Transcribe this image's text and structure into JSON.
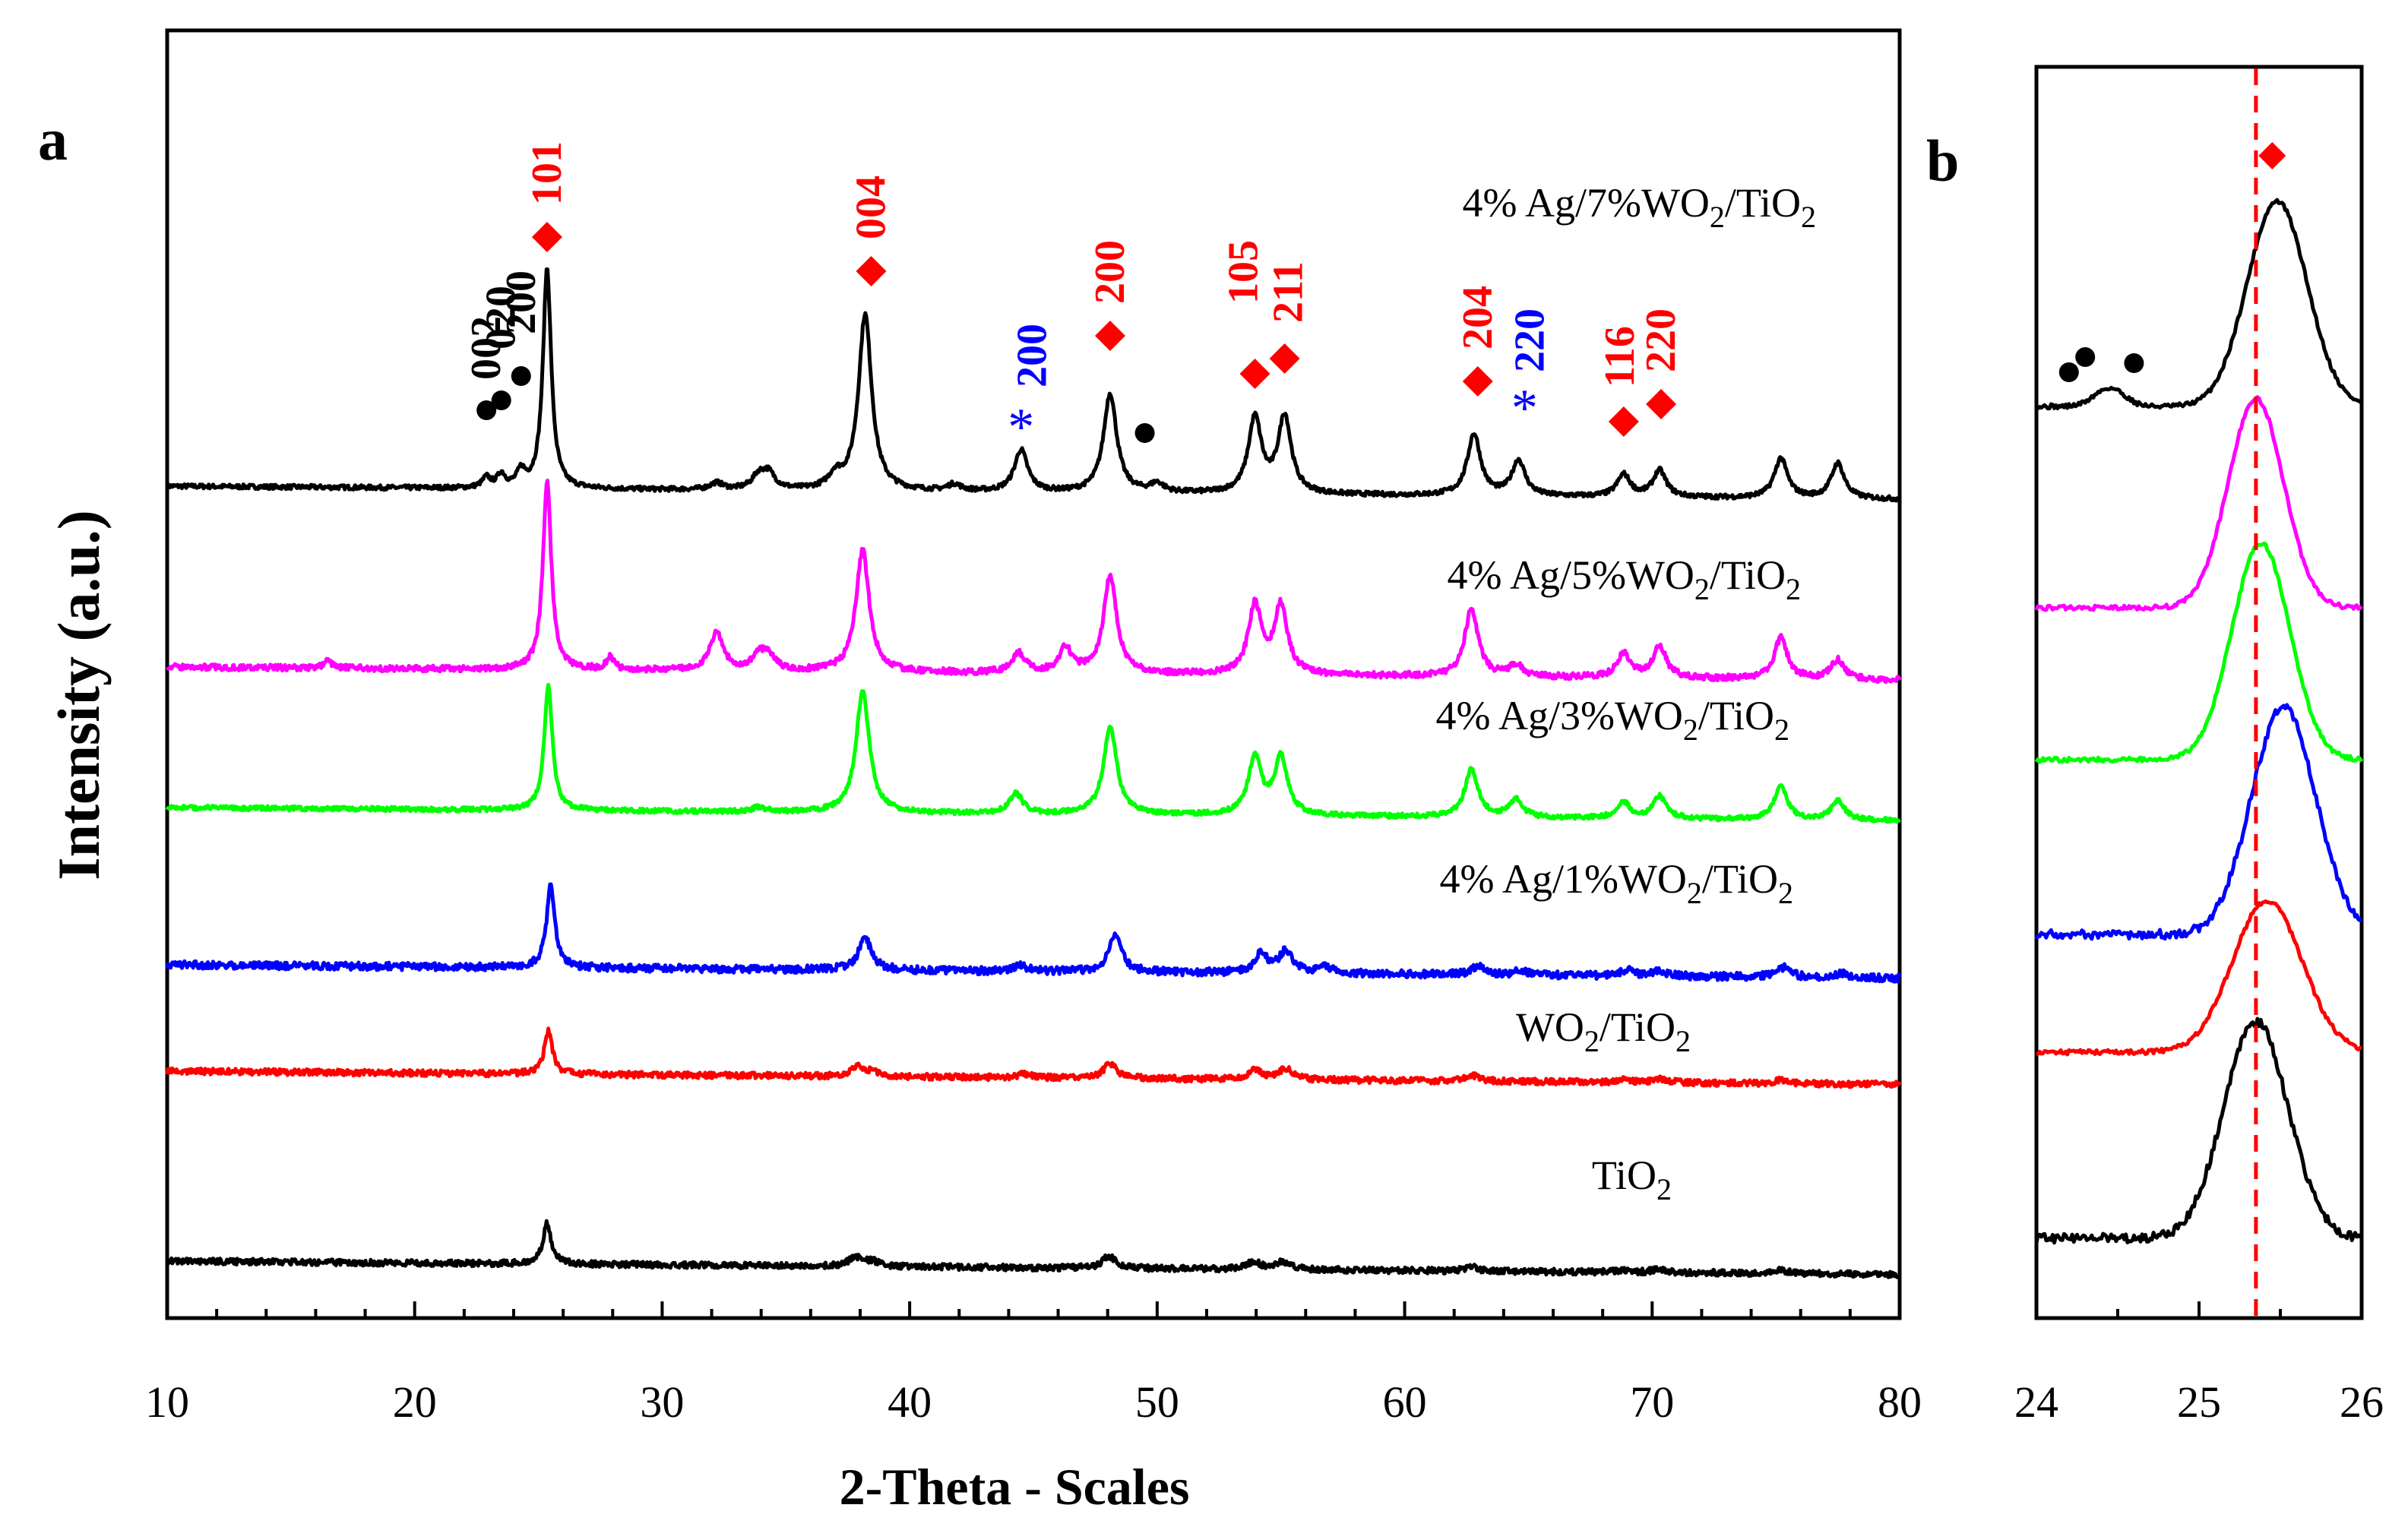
{
  "chart_data": [
    {
      "panel_label": "a",
      "type": "line",
      "title": "",
      "xlabel": "2-Theta - Scales",
      "ylabel": "Intensity (a.u.)",
      "xlim": [
        10,
        80
      ],
      "xticks": [
        "10",
        "20",
        "30",
        "40",
        "50",
        "60",
        "70",
        "80"
      ],
      "yticks": [],
      "grid": false,
      "legend": "inline labels next to each curve",
      "series": [
        {
          "name": "4% Ag/7%WO2/TiO2",
          "label_main": "4% Ag/7%WO",
          "label_mid": "/TiO",
          "sub": "2",
          "color": "#000000",
          "baseline": 0.0,
          "peaks": [
            [
              22.9,
              0.045
            ],
            [
              23.5,
              0.06
            ],
            [
              24.3,
              0.07
            ],
            [
              25.35,
              1.0
            ],
            [
              32.2,
              0.03
            ],
            [
              33.9,
              0.06
            ],
            [
              34.3,
              0.07
            ],
            [
              37.0,
              0.06
            ],
            [
              38.2,
              0.8
            ],
            [
              41.8,
              0.03
            ],
            [
              44.5,
              0.19
            ],
            [
              48.1,
              0.45
            ],
            [
              50.0,
              0.04
            ],
            [
              53.95,
              0.34
            ],
            [
              55.15,
              0.35
            ],
            [
              62.8,
              0.28
            ],
            [
              64.6,
              0.16
            ],
            [
              68.85,
              0.1
            ],
            [
              70.3,
              0.12
            ],
            [
              75.2,
              0.18
            ],
            [
              77.5,
              0.16
            ]
          ]
        },
        {
          "name": "4% Ag/5%WO2/TiO2",
          "label_main": "4% Ag/5%WO",
          "label_mid": "/TiO",
          "sub": "2",
          "color": "#ff00ff",
          "baseline": 0.0,
          "peaks": [
            [
              16.5,
              0.03
            ],
            [
              25.35,
              0.78
            ],
            [
              27.9,
              0.05
            ],
            [
              32.2,
              0.16
            ],
            [
              33.9,
              0.06
            ],
            [
              34.3,
              0.06
            ],
            [
              38.1,
              0.5
            ],
            [
              44.4,
              0.08
            ],
            [
              46.3,
              0.1
            ],
            [
              48.1,
              0.4
            ],
            [
              53.95,
              0.28
            ],
            [
              55.0,
              0.28
            ],
            [
              62.7,
              0.28
            ],
            [
              64.5,
              0.05
            ],
            [
              68.85,
              0.1
            ],
            [
              70.3,
              0.13
            ],
            [
              75.2,
              0.17
            ],
            [
              77.5,
              0.08
            ]
          ]
        },
        {
          "name": "4% Ag/3%WO2/TiO2",
          "label_main": "4% Ag/3%WO",
          "label_mid": "/TiO",
          "sub": "2",
          "color": "#00ff00",
          "baseline": 0.0,
          "peaks": [
            [
              25.4,
              0.56
            ],
            [
              33.9,
              0.02
            ],
            [
              38.1,
              0.55
            ],
            [
              44.3,
              0.09
            ],
            [
              48.1,
              0.4
            ],
            [
              53.95,
              0.26
            ],
            [
              55.0,
              0.26
            ],
            [
              62.7,
              0.22
            ],
            [
              64.5,
              0.08
            ],
            [
              68.85,
              0.07
            ],
            [
              70.3,
              0.1
            ],
            [
              75.2,
              0.15
            ],
            [
              77.5,
              0.09
            ]
          ]
        },
        {
          "name": "4% Ag/1%WO2/TiO2",
          "label_main": "4% Ag/1%WO",
          "label_mid": "/TiO",
          "sub": "2",
          "color": "#0000ff",
          "baseline": 0.0,
          "peaks": [
            [
              25.5,
              0.61
            ],
            [
              38.2,
              0.23
            ],
            [
              44.5,
              0.04
            ],
            [
              48.3,
              0.26
            ],
            [
              54.2,
              0.14
            ],
            [
              55.2,
              0.16
            ],
            [
              56.8,
              0.05
            ],
            [
              63.0,
              0.07
            ],
            [
              64.7,
              0.03
            ],
            [
              69.0,
              0.04
            ],
            [
              70.3,
              0.04
            ],
            [
              75.3,
              0.07
            ],
            [
              77.6,
              0.03
            ]
          ]
        },
        {
          "name": "WO2/TiO2",
          "label_main": "WO",
          "label_mid": "/TiO",
          "sub": "2",
          "color": "#ff0000",
          "baseline": 0.0,
          "peaks": [
            [
              25.4,
              0.47
            ],
            [
              37.9,
              0.1
            ],
            [
              38.5,
              0.05
            ],
            [
              44.6,
              0.04
            ],
            [
              48.1,
              0.16
            ],
            [
              53.95,
              0.1
            ],
            [
              55.2,
              0.12
            ],
            [
              62.7,
              0.07
            ],
            [
              68.8,
              0.03
            ],
            [
              70.4,
              0.04
            ],
            [
              75.2,
              0.04
            ]
          ]
        },
        {
          "name": "TiO2",
          "label_main": "TiO",
          "label_mid": "",
          "sub": "2",
          "color": "#000000",
          "baseline": 0.0,
          "peaks": [
            [
              25.35,
              0.67
            ],
            [
              37.8,
              0.15
            ],
            [
              38.5,
              0.08
            ],
            [
              48.05,
              0.2
            ],
            [
              53.9,
              0.13
            ],
            [
              55.1,
              0.13
            ],
            [
              62.7,
              0.07
            ],
            [
              68.8,
              0.03
            ],
            [
              70.3,
              0.06
            ],
            [
              75.2,
              0.05
            ]
          ]
        }
      ],
      "annotations": [
        {
          "text": "101",
          "color": "#ff0000",
          "marker": "diamond",
          "x": 25.35
        },
        {
          "text": "004",
          "color": "#ff0000",
          "marker": "diamond",
          "x": 38.2
        },
        {
          "text": "200",
          "color": "#0000ff",
          "marker": "asterisk",
          "x": 44.5
        },
        {
          "text": "200",
          "color": "#ff0000",
          "marker": "diamond",
          "x": 48.1
        },
        {
          "text": "105",
          "color": "#ff0000",
          "marker": "diamond",
          "x": 53.95
        },
        {
          "text": "211",
          "color": "#ff0000",
          "marker": "diamond",
          "x": 55.15
        },
        {
          "text": "204",
          "color": "#ff0000",
          "marker": "diamond",
          "x": 62.8
        },
        {
          "text": "220",
          "color": "#0000ff",
          "marker": "asterisk",
          "x": 64.6
        },
        {
          "text": "116",
          "color": "#ff0000",
          "marker": "diamond",
          "x": 68.85
        },
        {
          "text": "220",
          "color": "#ff0000",
          "marker": "diamond",
          "x": 70.3
        },
        {
          "text": "002",
          "color": "#000000",
          "marker": "dot",
          "x": 22.9
        },
        {
          "text": "020",
          "color": "#000000",
          "marker": "dot",
          "x": 23.5
        },
        {
          "text": "200",
          "color": "#000000",
          "marker": "dot",
          "x": 24.3
        },
        {
          "text": "",
          "color": "#000000",
          "marker": "dot",
          "x": 49.5
        }
      ]
    },
    {
      "panel_label": "b",
      "type": "line",
      "title": "",
      "xlabel": "",
      "ylabel": "",
      "xlim": [
        24,
        26
      ],
      "xticks": [
        "24",
        "25",
        "26"
      ],
      "grid": false,
      "reference_line": {
        "x": 25.35,
        "color": "#ff0000",
        "style": "dashed",
        "marker": "diamond"
      },
      "series": [
        {
          "name": "4% Ag/7%WO2/TiO2",
          "color": "#000000",
          "peak_center": 25.48,
          "peak_width": 0.26
        },
        {
          "name": "4% Ag/5%WO2/TiO2",
          "color": "#ff00ff",
          "peak_center": 25.35,
          "peak_width": 0.24
        },
        {
          "name": "4% Ag/3%WO2/TiO2",
          "color": "#00ff00",
          "peak_center": 25.38,
          "peak_width": 0.25
        },
        {
          "name": "4% Ag/1%WO2/TiO2",
          "color": "#0000ff",
          "peak_center": 25.52,
          "peak_width": 0.28
        },
        {
          "name": "WO2/TiO2",
          "color": "#ff0000",
          "peak_center": 25.42,
          "peak_width": 0.3
        },
        {
          "name": "TiO2",
          "color": "#000000",
          "peak_center": 25.35,
          "peak_width": 0.28
        }
      ]
    }
  ]
}
